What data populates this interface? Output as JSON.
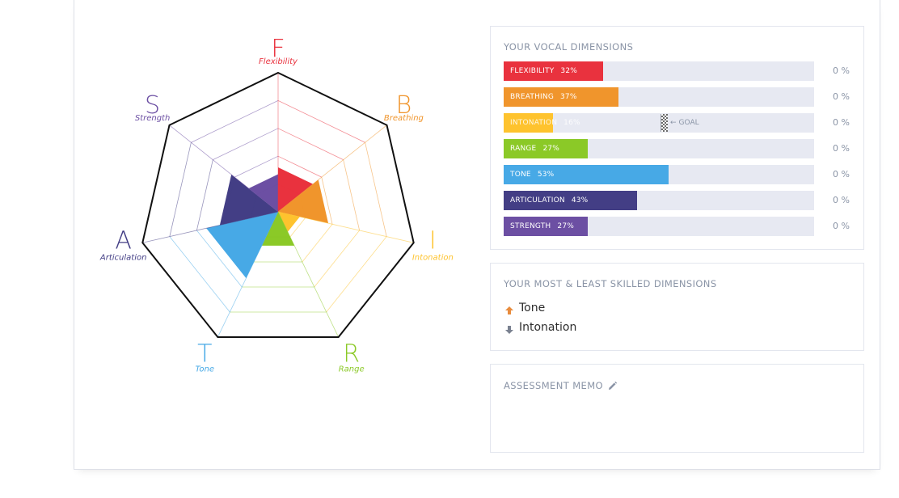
{
  "radar": {
    "dimensions": [
      {
        "letter": "F",
        "name": "Flexibility",
        "value": 32,
        "color": "#e9323e"
      },
      {
        "letter": "B",
        "name": "Breathing",
        "value": 37,
        "color": "#f0952c"
      },
      {
        "letter": "I",
        "name": "Intonation",
        "value": 16,
        "color": "#fec32e"
      },
      {
        "letter": "R",
        "name": "Range",
        "value": 27,
        "color": "#8bc927"
      },
      {
        "letter": "T",
        "name": "Tone",
        "value": 53,
        "color": "#47a9e6"
      },
      {
        "letter": "A",
        "name": "Articulation",
        "value": 43,
        "color": "#433e85"
      },
      {
        "letter": "S",
        "name": "Strength",
        "value": 27,
        "color": "#6c4fa3"
      }
    ]
  },
  "dimensions_panel": {
    "title": "YOUR VOCAL DIMENSIONS",
    "goal_label": "GOAL",
    "goal_arrow": "←",
    "rows": [
      {
        "name": "FLEXIBILITY",
        "percent": "32%",
        "value": 32,
        "color": "#e9323e",
        "right_value": "0 %"
      },
      {
        "name": "BREATHING",
        "percent": "37%",
        "value": 37,
        "color": "#f0952c",
        "right_value": "0 %"
      },
      {
        "name": "INTONATION",
        "percent": "16%",
        "value": 16,
        "color": "#fec32e",
        "right_value": "0 %"
      },
      {
        "name": "RANGE",
        "percent": "27%",
        "value": 27,
        "color": "#8bc927",
        "right_value": "0 %"
      },
      {
        "name": "TONE",
        "percent": "53%",
        "value": 53,
        "color": "#47a9e6",
        "right_value": "0 %"
      },
      {
        "name": "ARTICULATION",
        "percent": "43%",
        "value": 43,
        "color": "#433e85",
        "right_value": "0 %"
      },
      {
        "name": "STRENGTH",
        "percent": "27%",
        "value": 27,
        "color": "#6c4fa3",
        "right_value": "0 %"
      }
    ]
  },
  "skills_panel": {
    "title": "YOUR MOST & LEAST SKILLED DIMENSIONS",
    "most": "Tone",
    "least": "Intonation",
    "most_icon": "arrow-up-icon",
    "least_icon": "arrow-down-icon"
  },
  "memo_panel": {
    "title": "ASSESSMENT MEMO",
    "icon": "pencil-icon"
  }
}
